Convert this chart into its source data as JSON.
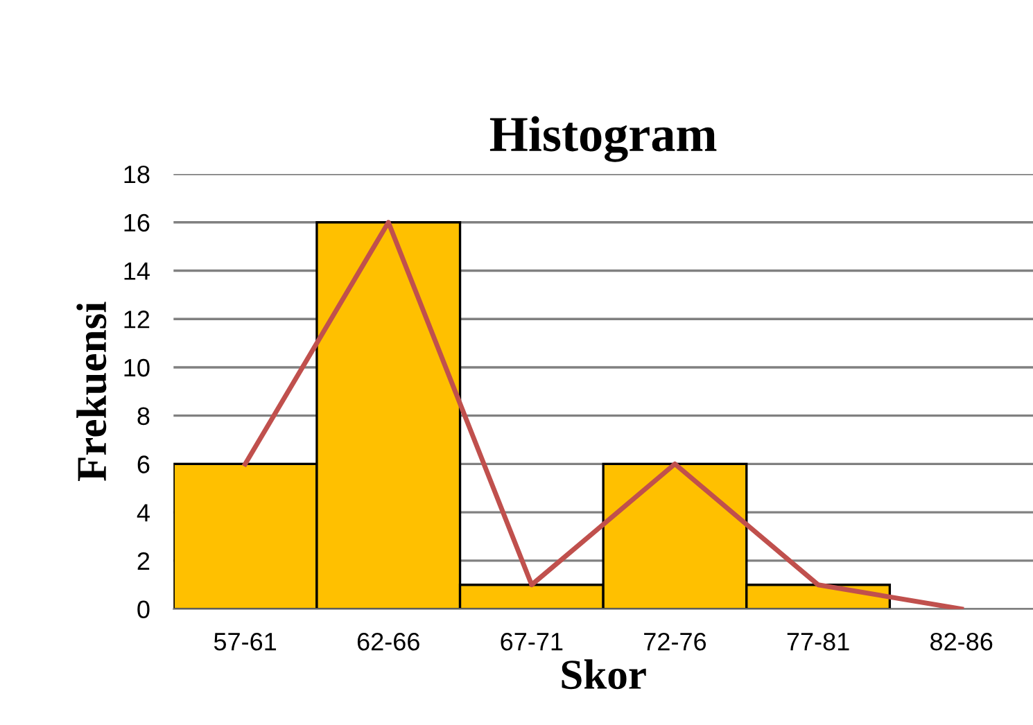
{
  "chart_data": {
    "type": "bar",
    "title": "Histogram",
    "xlabel": "Skor",
    "ylabel": "Frekuensi",
    "categories": [
      "57-61",
      "62-66",
      "67-71",
      "72-76",
      "77-81",
      "82-86"
    ],
    "series": [
      {
        "color": "#ffc000",
        "values": [
          6,
          16,
          1,
          6,
          1,
          0
        ]
      },
      {
        "type": "line",
        "color": "#c0504d",
        "values": [
          6,
          16,
          1,
          6,
          1,
          0
        ]
      }
    ],
    "ylim": [
      0,
      18
    ],
    "yticks": [
      0,
      2,
      4,
      6,
      8,
      10,
      12,
      14,
      16,
      18
    ],
    "grid": "y",
    "legend": false,
    "marker": "none",
    "line_style": "solid"
  }
}
